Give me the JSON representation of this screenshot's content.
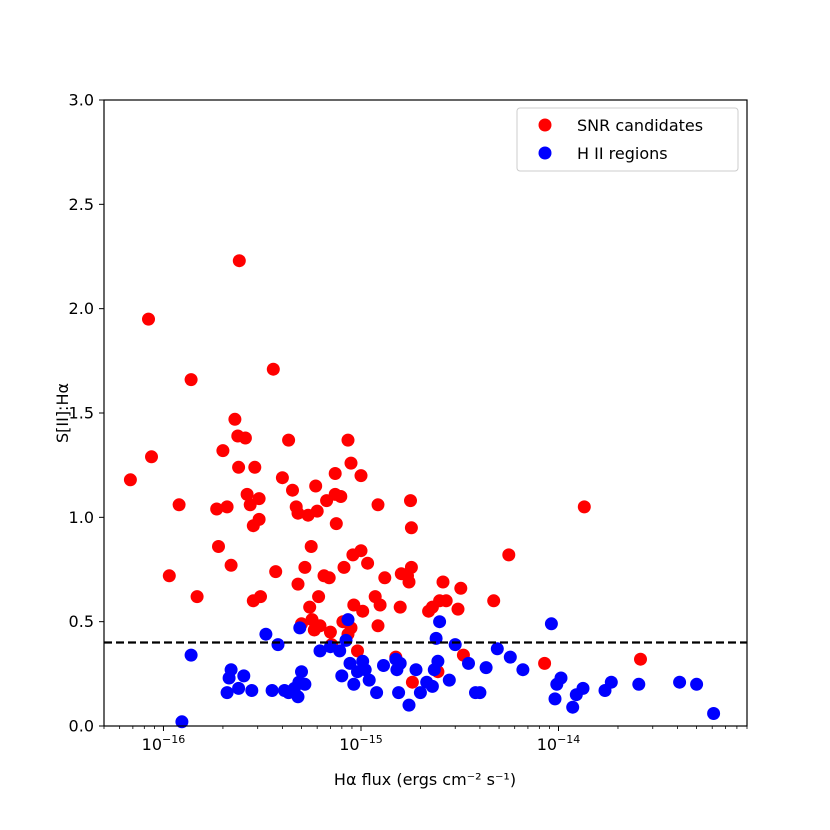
{
  "chart_data": {
    "type": "scatter",
    "x_scale": "log",
    "xlim": [
      5e-17,
      9e-14
    ],
    "ylim": [
      0.0,
      3.0
    ],
    "xlabel": "Hα flux (ergs cm⁻² s⁻¹)",
    "ylabel": "S[II]:Hα",
    "x_ticks": [
      {
        "value": 1e-16,
        "mantissa": "10",
        "exp": "−16"
      },
      {
        "value": 1e-15,
        "mantissa": "10",
        "exp": "−15"
      },
      {
        "value": 1e-14,
        "mantissa": "10",
        "exp": "−14"
      }
    ],
    "y_ticks": [
      {
        "value": 0.0,
        "label": "0.0"
      },
      {
        "value": 0.5,
        "label": "0.5"
      },
      {
        "value": 1.0,
        "label": "1.0"
      },
      {
        "value": 1.5,
        "label": "1.5"
      },
      {
        "value": 2.0,
        "label": "2.0"
      },
      {
        "value": 2.5,
        "label": "2.5"
      },
      {
        "value": 3.0,
        "label": "3.0"
      }
    ],
    "threshold": {
      "y": 0.4,
      "style": "dashed",
      "color": "#000000"
    },
    "legend": {
      "position": "top-right"
    },
    "grid": false,
    "series": [
      {
        "name": "SNR candidates",
        "color": "#ff0000",
        "points": [
          [
            6.8e-17,
            1.18
          ],
          [
            8.4e-17,
            1.95
          ],
          [
            8.7e-17,
            1.29
          ],
          [
            1.07e-16,
            0.72
          ],
          [
            1.2e-16,
            1.06
          ],
          [
            1.38e-16,
            1.66
          ],
          [
            1.48e-16,
            0.62
          ],
          [
            1.86e-16,
            1.04
          ],
          [
            1.9e-16,
            0.86
          ],
          [
            2e-16,
            1.32
          ],
          [
            2.1e-16,
            1.05
          ],
          [
            2.2e-16,
            0.77
          ],
          [
            2.3e-16,
            1.47
          ],
          [
            2.38e-16,
            1.39
          ],
          [
            2.4e-16,
            1.24
          ],
          [
            2.42e-16,
            2.23
          ],
          [
            2.6e-16,
            1.38
          ],
          [
            2.65e-16,
            1.11
          ],
          [
            2.75e-16,
            1.06
          ],
          [
            2.85e-16,
            0.96
          ],
          [
            2.9e-16,
            1.24
          ],
          [
            2.85e-16,
            0.6
          ],
          [
            3.05e-16,
            1.09
          ],
          [
            3.05e-16,
            0.99
          ],
          [
            3.1e-16,
            0.62
          ],
          [
            3.6e-16,
            1.71
          ],
          [
            3.7e-16,
            0.74
          ],
          [
            4e-16,
            1.19
          ],
          [
            4.3e-16,
            1.37
          ],
          [
            4.5e-16,
            1.13
          ],
          [
            4.7e-16,
            1.05
          ],
          [
            4.8e-16,
            1.02
          ],
          [
            4.8e-16,
            0.68
          ],
          [
            5e-16,
            0.49
          ],
          [
            5.2e-16,
            0.76
          ],
          [
            5.4e-16,
            1.01
          ],
          [
            5.5e-16,
            0.57
          ],
          [
            5.6e-16,
            0.86
          ],
          [
            5.65e-16,
            0.51
          ],
          [
            5.8e-16,
            0.46
          ],
          [
            5.9e-16,
            1.15
          ],
          [
            6e-16,
            1.03
          ],
          [
            6.1e-16,
            0.62
          ],
          [
            6.2e-16,
            0.48
          ],
          [
            6.5e-16,
            0.72
          ],
          [
            6.7e-16,
            1.08
          ],
          [
            6.9e-16,
            0.71
          ],
          [
            7e-16,
            0.45
          ],
          [
            7.1e-16,
            0.39
          ],
          [
            7.4e-16,
            1.21
          ],
          [
            7.4e-16,
            1.11
          ],
          [
            7.5e-16,
            0.97
          ],
          [
            7.9e-16,
            1.1
          ],
          [
            8.1e-16,
            0.5
          ],
          [
            8.2e-16,
            0.76
          ],
          [
            8.6e-16,
            1.37
          ],
          [
            8.9e-16,
            1.26
          ],
          [
            8.6e-16,
            0.44
          ],
          [
            8.9e-16,
            0.47
          ],
          [
            9.1e-16,
            0.82
          ],
          [
            9.2e-16,
            0.58
          ],
          [
            9.6e-16,
            0.36
          ],
          [
            1e-15,
            1.2
          ],
          [
            1e-15,
            0.84
          ],
          [
            1.02e-15,
            0.55
          ],
          [
            1.08e-15,
            0.78
          ],
          [
            1.18e-15,
            0.62
          ],
          [
            1.22e-15,
            0.48
          ],
          [
            1.22e-15,
            1.06
          ],
          [
            1.25e-15,
            0.58
          ],
          [
            1.32e-15,
            0.71
          ],
          [
            1.5e-15,
            0.33
          ],
          [
            1.58e-15,
            0.57
          ],
          [
            1.6e-15,
            0.73
          ],
          [
            1.72e-15,
            0.72
          ],
          [
            1.75e-15,
            0.69
          ],
          [
            1.78e-15,
            1.08
          ],
          [
            1.8e-15,
            0.95
          ],
          [
            1.8e-15,
            0.76
          ],
          [
            1.82e-15,
            0.21
          ],
          [
            2.2e-15,
            0.55
          ],
          [
            2.3e-15,
            0.57
          ],
          [
            2.5e-15,
            0.6
          ],
          [
            2.45e-15,
            0.26
          ],
          [
            2.6e-15,
            0.69
          ],
          [
            2.7e-15,
            0.6
          ],
          [
            3.1e-15,
            0.56
          ],
          [
            3.2e-15,
            0.66
          ],
          [
            3.3e-15,
            0.34
          ],
          [
            4.7e-15,
            0.6
          ],
          [
            5.6e-15,
            0.82
          ],
          [
            8.5e-15,
            0.3
          ],
          [
            1.35e-14,
            1.05
          ],
          [
            2.6e-14,
            0.32
          ]
        ]
      },
      {
        "name": "H II regions",
        "color": "#0000ff",
        "points": [
          [
            1.24e-16,
            0.02
          ],
          [
            1.38e-16,
            0.34
          ],
          [
            2.1e-16,
            0.16
          ],
          [
            2.15e-16,
            0.23
          ],
          [
            2.2e-16,
            0.27
          ],
          [
            2.4e-16,
            0.18
          ],
          [
            2.55e-16,
            0.24
          ],
          [
            2.8e-16,
            0.17
          ],
          [
            3.3e-16,
            0.44
          ],
          [
            3.55e-16,
            0.17
          ],
          [
            3.8e-16,
            0.39
          ],
          [
            4.1e-16,
            0.17
          ],
          [
            4.3e-16,
            0.16
          ],
          [
            4.6e-16,
            0.18
          ],
          [
            4.8e-16,
            0.14
          ],
          [
            4.85e-16,
            0.21
          ],
          [
            4.9e-16,
            0.47
          ],
          [
            5e-16,
            0.26
          ],
          [
            5.2e-16,
            0.2
          ],
          [
            6.2e-16,
            0.36
          ],
          [
            7e-16,
            0.38
          ],
          [
            7.8e-16,
            0.36
          ],
          [
            8e-16,
            0.24
          ],
          [
            8.4e-16,
            0.41
          ],
          [
            8.6e-16,
            0.51
          ],
          [
            8.8e-16,
            0.3
          ],
          [
            9.2e-16,
            0.2
          ],
          [
            9.6e-16,
            0.26
          ],
          [
            1.02e-15,
            0.31
          ],
          [
            1.05e-15,
            0.27
          ],
          [
            1.1e-15,
            0.22
          ],
          [
            1.2e-15,
            0.16
          ],
          [
            1.3e-15,
            0.29
          ],
          [
            1.5e-15,
            0.32
          ],
          [
            1.52e-15,
            0.27
          ],
          [
            1.55e-15,
            0.16
          ],
          [
            1.58e-15,
            0.3
          ],
          [
            1.75e-15,
            0.1
          ],
          [
            1.9e-15,
            0.27
          ],
          [
            2e-15,
            0.16
          ],
          [
            2.15e-15,
            0.21
          ],
          [
            2.3e-15,
            0.19
          ],
          [
            2.35e-15,
            0.27
          ],
          [
            2.4e-15,
            0.42
          ],
          [
            2.45e-15,
            0.31
          ],
          [
            2.5e-15,
            0.5
          ],
          [
            2.8e-15,
            0.22
          ],
          [
            3e-15,
            0.39
          ],
          [
            3.5e-15,
            0.3
          ],
          [
            3.8e-15,
            0.16
          ],
          [
            4e-15,
            0.16
          ],
          [
            4.3e-15,
            0.28
          ],
          [
            4.9e-15,
            0.37
          ],
          [
            5.7e-15,
            0.33
          ],
          [
            6.6e-15,
            0.27
          ],
          [
            9.2e-15,
            0.49
          ],
          [
            9.6e-15,
            0.13
          ],
          [
            9.8e-15,
            0.2
          ],
          [
            1.03e-14,
            0.23
          ],
          [
            1.18e-14,
            0.09
          ],
          [
            1.23e-14,
            0.15
          ],
          [
            1.33e-14,
            0.18
          ],
          [
            1.72e-14,
            0.17
          ],
          [
            1.85e-14,
            0.21
          ],
          [
            2.55e-14,
            0.2
          ],
          [
            4.1e-14,
            0.21
          ],
          [
            5e-14,
            0.2
          ],
          [
            6.1e-14,
            0.06
          ]
        ]
      }
    ]
  }
}
